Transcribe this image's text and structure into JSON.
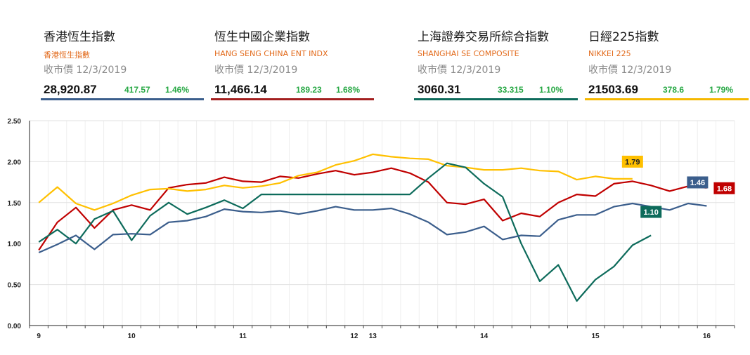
{
  "cards": [
    {
      "title": "香港恆生指數",
      "subtitle": "香港恆生指數",
      "date": "收市價 12/3/2019",
      "value": "28,920.87",
      "change": "417.57",
      "pct": "1.46%",
      "color": "#3b5e8c"
    },
    {
      "title": "恆生中國企業指數",
      "subtitle": "HANG SENG CHINA ENT INDX",
      "date": "收市價 12/3/2019",
      "value": "11,466.14",
      "change": "189.23",
      "pct": "1.68%",
      "color": "#a31f1f"
    },
    {
      "title": "上海證券交易所綜合指數",
      "subtitle": "SHANGHAI SE COMPOSITE",
      "date": "收市價 12/3/2019",
      "value": "3060.31",
      "change": "33.315",
      "pct": "1.10%",
      "color": "#0d6b5b"
    },
    {
      "title": "日經225指數",
      "subtitle": "NIKKEI 225",
      "date": "收市價 12/3/2019",
      "value": "21503.69",
      "change": "378.6",
      "pct": "1.79%",
      "color": "#f5b800"
    }
  ],
  "chart_data": {
    "type": "line",
    "ylim": [
      0,
      2.5
    ],
    "yticks": [
      "2.50",
      "2.00",
      "1.50",
      "1.00",
      "0.50",
      "0.00"
    ],
    "ytick_values": [
      2.5,
      2.0,
      1.5,
      1.0,
      0.5,
      0.0
    ],
    "xlim": [
      0,
      38
    ],
    "xticks": [
      {
        "label": "9",
        "x": 0.5
      },
      {
        "label": "10",
        "x": 5.5
      },
      {
        "label": "11",
        "x": 11.5
      },
      {
        "label": "12",
        "x": 17.5
      },
      {
        "label": "13",
        "x": 18.5
      },
      {
        "label": "14",
        "x": 24.5
      },
      {
        "label": "15",
        "x": 30.5
      },
      {
        "label": "16",
        "x": 36.5
      }
    ],
    "grid": true,
    "series": [
      {
        "name": "恆生中國企業指數",
        "color": "#c00000",
        "x": [
          0.5,
          1.5,
          2.5,
          3.5,
          4.5,
          5.5,
          6.5,
          7.5,
          8.5,
          9.5,
          10.5,
          11.5,
          12.5,
          13.5,
          14.5,
          15.5,
          16.5,
          17.5,
          18.5,
          19.5,
          20.5,
          21.5,
          22.5,
          23.5,
          24.5,
          25.5,
          26.5,
          27.5,
          28.5,
          29.5,
          30.5,
          31.5,
          32.5,
          33.5,
          34.5,
          35.5,
          36.5
        ],
        "values": [
          0.92,
          1.26,
          1.44,
          1.19,
          1.41,
          1.47,
          1.41,
          1.68,
          1.72,
          1.74,
          1.81,
          1.76,
          1.75,
          1.82,
          1.8,
          1.85,
          1.89,
          1.84,
          1.87,
          1.92,
          1.86,
          1.75,
          1.5,
          1.48,
          1.54,
          1.28,
          1.37,
          1.33,
          1.5,
          1.6,
          1.58,
          1.73,
          1.76,
          1.71,
          1.64,
          1.7,
          1.68
        ],
        "label": "1.68"
      },
      {
        "name": "日經225指數",
        "color": "#ffc000",
        "x": [
          0.5,
          1.5,
          2.5,
          3.5,
          4.5,
          5.5,
          6.5,
          7.5,
          8.5,
          9.5,
          10.5,
          11.5,
          12.5,
          13.5,
          14.5,
          15.5,
          16.5,
          17.5,
          18.5,
          19.5,
          20.5,
          21.5,
          22.5,
          23.5,
          24.5,
          25.5,
          26.5,
          27.5,
          28.5,
          29.5,
          30.5,
          31.5,
          32.5
        ],
        "values": [
          1.5,
          1.69,
          1.49,
          1.41,
          1.49,
          1.59,
          1.66,
          1.67,
          1.64,
          1.66,
          1.71,
          1.68,
          1.7,
          1.74,
          1.83,
          1.87,
          1.96,
          2.01,
          2.09,
          2.06,
          2.04,
          2.03,
          1.95,
          1.93,
          1.9,
          1.9,
          1.92,
          1.89,
          1.88,
          1.78,
          1.82,
          1.79,
          1.79
        ],
        "label": "1.79"
      },
      {
        "name": "上海證券交易所綜合指數",
        "color": "#0d6b5b",
        "x": [
          0.5,
          1.5,
          2.5,
          3.5,
          4.5,
          5.5,
          6.5,
          7.5,
          8.5,
          9.5,
          10.5,
          11.5,
          12.5,
          13.5,
          14.5,
          15.5,
          16.5,
          17.5,
          18.5,
          19.5,
          20.5,
          21.5,
          22.5,
          23.5,
          24.5,
          25.5,
          26.5,
          27.5,
          28.5,
          29.5,
          30.5,
          31.5,
          32.5,
          33.5
        ],
        "values": [
          1.02,
          1.17,
          1.0,
          1.3,
          1.4,
          1.04,
          1.34,
          1.5,
          1.36,
          1.44,
          1.53,
          1.43,
          1.6,
          1.6,
          1.6,
          1.6,
          1.6,
          1.6,
          1.6,
          1.6,
          1.6,
          1.8,
          1.98,
          1.93,
          1.73,
          1.57,
          1.0,
          0.54,
          0.74,
          0.3,
          0.56,
          0.72,
          0.98,
          1.1
        ],
        "label": "1.10"
      },
      {
        "name": "香港恆生指數",
        "color": "#3b5e8c",
        "x": [
          0.5,
          1.5,
          2.5,
          3.5,
          4.5,
          5.5,
          6.5,
          7.5,
          8.5,
          9.5,
          10.5,
          11.5,
          12.5,
          13.5,
          14.5,
          15.5,
          16.5,
          17.5,
          18.5,
          19.5,
          20.5,
          21.5,
          22.5,
          23.5,
          24.5,
          25.5,
          26.5,
          27.5,
          28.5,
          29.5,
          30.5,
          31.5,
          32.5,
          33.5,
          34.5,
          35.5,
          36.5
        ],
        "values": [
          0.89,
          0.99,
          1.1,
          0.93,
          1.11,
          1.12,
          1.11,
          1.26,
          1.28,
          1.33,
          1.42,
          1.39,
          1.38,
          1.4,
          1.36,
          1.4,
          1.45,
          1.41,
          1.41,
          1.43,
          1.36,
          1.26,
          1.11,
          1.14,
          1.21,
          1.05,
          1.1,
          1.09,
          1.29,
          1.35,
          1.35,
          1.45,
          1.49,
          1.45,
          1.41,
          1.49,
          1.46
        ],
        "label": "1.46"
      }
    ]
  }
}
